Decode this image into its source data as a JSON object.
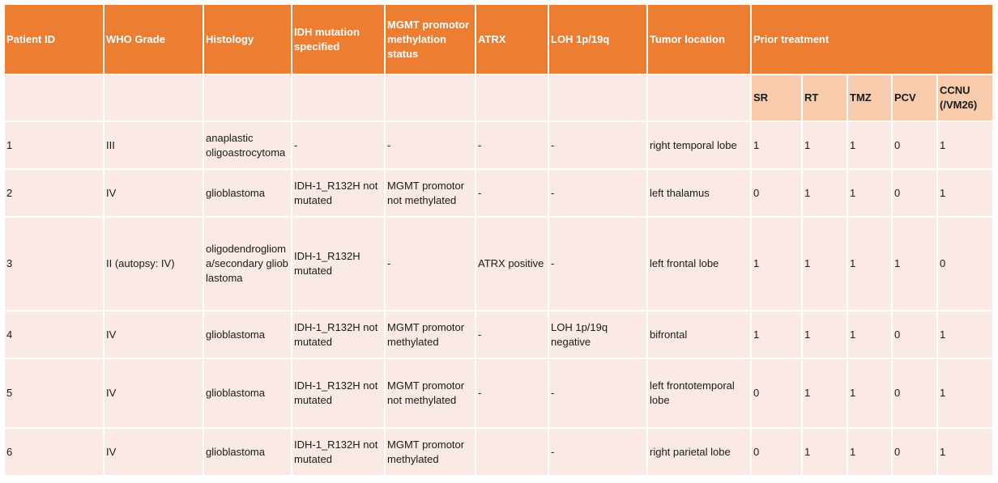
{
  "columns": {
    "patient_id": "Patient ID",
    "who_grade": "WHO Grade",
    "histology": "Histology",
    "idh": "IDH mutation specified",
    "mgmt": "MGMT promotor methylation status",
    "atrx": "ATRX",
    "loh": "LOH 1p/19q",
    "location": "Tumor location",
    "prior_treatment": "Prior treatment"
  },
  "treatments": [
    "SR",
    "RT",
    "TMZ",
    "PCV",
    "CCNU (/VM26)"
  ],
  "rows": [
    {
      "id": "1",
      "grade": "III",
      "histology": "anaplastic oligoastrocytoma",
      "idh": "-",
      "mgmt": "-",
      "atrx": "-",
      "loh": "-",
      "location": "right temporal lobe",
      "tx": [
        "1",
        "1",
        "1",
        "0",
        "1"
      ]
    },
    {
      "id": "2",
      "grade": "IV",
      "histology": "glioblastoma",
      "idh": "IDH-1_R132H not mutated",
      "mgmt": "MGMT promotor not methylated",
      "atrx": "-",
      "loh": "-",
      "location": "left thalamus",
      "tx": [
        "0",
        "1",
        "1",
        "0",
        "1"
      ]
    },
    {
      "id": "3",
      "grade": "II (autopsy: IV)",
      "histology": "oligodendroglioma/secondary glioblastoma",
      "idh": "IDH-1_R132H mutated",
      "mgmt": "-",
      "atrx": "ATRX positive",
      "loh": "-",
      "location": "left frontal lobe",
      "tx": [
        "1",
        "1",
        "1",
        "1",
        "0"
      ]
    },
    {
      "id": "4",
      "grade": "IV",
      "histology": "glioblastoma",
      "idh": "IDH-1_R132H not mutated",
      "mgmt": "MGMT promotor methylated",
      "atrx": "-",
      "loh": "LOH 1p/19q negative",
      "location": "bifrontal",
      "tx": [
        "1",
        "1",
        "1",
        "0",
        "1"
      ]
    },
    {
      "id": "5",
      "grade": "IV",
      "histology": "glioblastoma",
      "idh": "IDH-1_R132H not mutated",
      "mgmt": "MGMT promotor not methylated",
      "atrx": "-",
      "loh": "-",
      "location": "left frontotemporal lobe",
      "tx": [
        "0",
        "1",
        "1",
        "0",
        "1"
      ]
    },
    {
      "id": "6",
      "grade": "IV",
      "histology": "glioblastoma",
      "idh": "IDH-1_R132H not mutated",
      "mgmt": "MGMT promotor methylated",
      "atrx": "",
      "loh": "-",
      "location": "right parietal lobe",
      "tx": [
        "0",
        "1",
        "1",
        "0",
        "1"
      ]
    }
  ]
}
